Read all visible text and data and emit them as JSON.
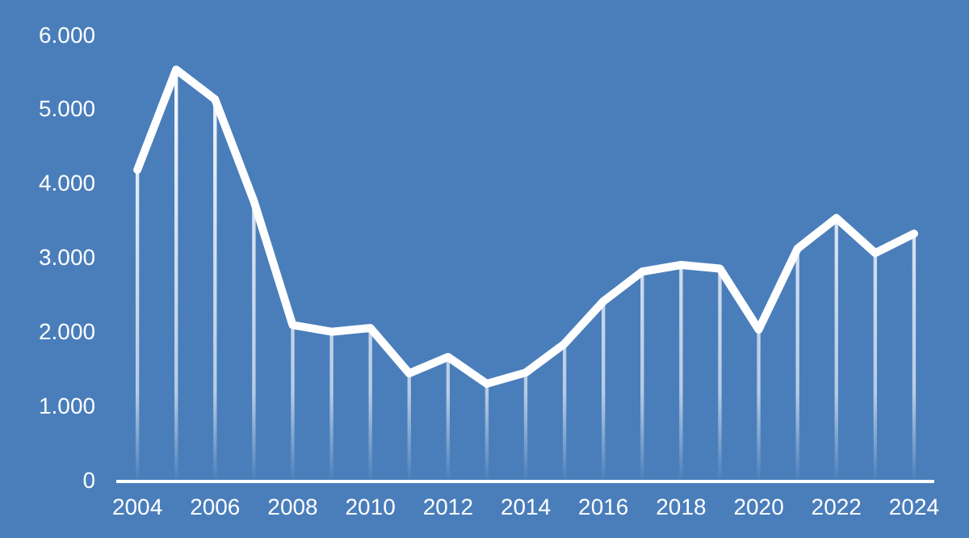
{
  "chart_data": {
    "type": "line",
    "categories": [
      "2004",
      null,
      "2006",
      null,
      "2008",
      null,
      "2010",
      null,
      "2012",
      null,
      "2014",
      null,
      "2016",
      null,
      "2018",
      null,
      "2020",
      null,
      "2022",
      null,
      "2024"
    ],
    "series": [
      {
        "type": "bar",
        "color": "#ffffff",
        "values": [
          4200,
          5550,
          5150,
          3780,
          2110,
          2020,
          2070,
          1460,
          1680,
          1320,
          1470,
          1860,
          2430,
          2830,
          2920,
          2870,
          2050,
          3140,
          3550,
          3080,
          3340
        ]
      },
      {
        "color": "#ffffff",
        "values": [
          4200,
          5550,
          5150,
          3780,
          2110,
          2020,
          2070,
          1460,
          1680,
          1320,
          1470,
          1860,
          2430,
          2830,
          2920,
          2870,
          2050,
          3140,
          3550,
          3080,
          3340
        ]
      }
    ],
    "ylim": [
      0,
      6000
    ],
    "yticks": [
      {
        "value": 0,
        "label": "0"
      },
      {
        "value": 1000,
        "label": "1.000"
      },
      {
        "value": 2000,
        "label": "2.000"
      },
      {
        "value": 3000,
        "label": "3.000"
      },
      {
        "value": 4000,
        "label": "4.000"
      },
      {
        "value": 5000,
        "label": "5.000"
      },
      {
        "value": 6000,
        "label": "6.000"
      }
    ],
    "grid": false,
    "legend": false,
    "marker": "none",
    "line_style": "solid"
  }
}
